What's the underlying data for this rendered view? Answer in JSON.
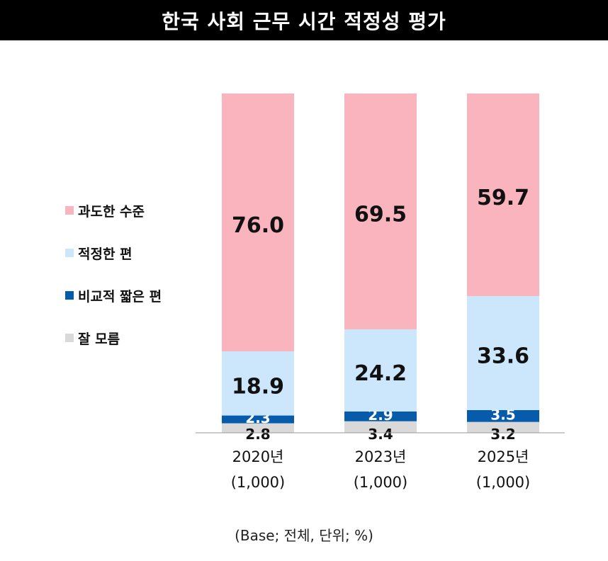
{
  "title": "한국 사회 근무 시간 적정성 평가",
  "note": "(Base; 전체, 단위; %)",
  "legend": [
    {
      "label": "과도한 수준",
      "color": "#F9B4BE"
    },
    {
      "label": "적정한 편",
      "color": "#CCE7FB"
    },
    {
      "label": "비교적 짧은 편",
      "color": "#065BAA"
    },
    {
      "label": "잘 모름",
      "color": "#D9D9D9"
    }
  ],
  "chart_data": {
    "type": "bar",
    "stacked": true,
    "categories": [
      "2020년",
      "2023년",
      "2025년"
    ],
    "category_bases": [
      "(1,000)",
      "(1,000)",
      "(1,000)"
    ],
    "series": [
      {
        "name": "잘 모름",
        "color": "#D9D9D9",
        "values": [
          2.8,
          3.4,
          3.2
        ]
      },
      {
        "name": "비교적 짧은 편",
        "color": "#065BAA",
        "values": [
          2.3,
          2.9,
          3.5
        ]
      },
      {
        "name": "적정한 편",
        "color": "#CCE7FB",
        "values": [
          18.9,
          24.2,
          33.6
        ]
      },
      {
        "name": "과도한 수준",
        "color": "#F9B4BE",
        "values": [
          76.0,
          69.5,
          59.7
        ]
      }
    ],
    "value_labels": [
      [
        "2.8",
        "3.4",
        "3.2"
      ],
      [
        "2.3",
        "2.9",
        "3.5"
      ],
      [
        "18.9",
        "24.2",
        "33.6"
      ],
      [
        "76.0",
        "69.5",
        "59.7"
      ]
    ],
    "ylim": [
      0,
      100
    ],
    "grid": false
  }
}
